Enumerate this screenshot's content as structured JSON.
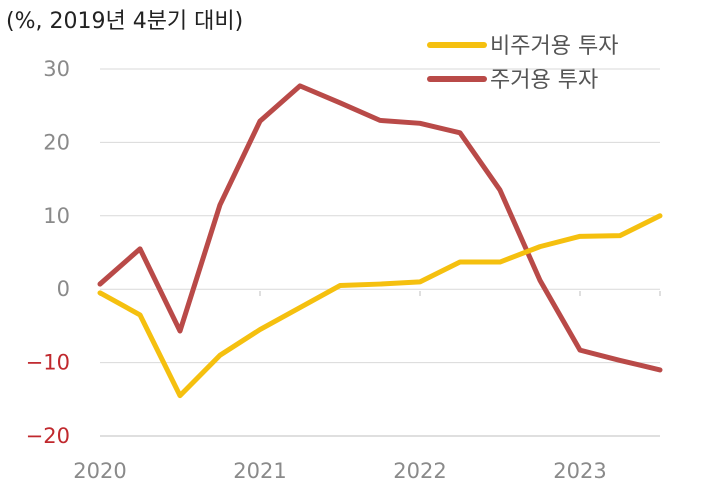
{
  "chart_data": {
    "type": "line",
    "unit_label": "(%, 2019년 4분기 대비)",
    "x": [
      0,
      1,
      2,
      3,
      4,
      5,
      6,
      7,
      8,
      9,
      10,
      11,
      12,
      13,
      14
    ],
    "x_tick_labels": [
      {
        "pos": 0,
        "label": "2020"
      },
      {
        "pos": 4,
        "label": "2021"
      },
      {
        "pos": 8,
        "label": "2022"
      },
      {
        "pos": 12,
        "label": "2023"
      }
    ],
    "xlim": [
      0,
      14
    ],
    "ylim": [
      -20,
      30
    ],
    "y_ticks": [
      30,
      20,
      10,
      0,
      -10,
      -20
    ],
    "grid": true,
    "legend_position": "top-right",
    "series": [
      {
        "name": "비주거용 투자",
        "color": "#f5c00f",
        "values": [
          -0.5,
          -3.5,
          -14.5,
          -9,
          -5.5,
          -2.5,
          0.5,
          0.7,
          1.0,
          3.7,
          3.7,
          5.8,
          7.2,
          7.3,
          10.0
        ]
      },
      {
        "name": "주거용 투자",
        "color": "#b94a48",
        "values": [
          0.7,
          5.5,
          -5.7,
          11.5,
          22.9,
          27.7,
          25.4,
          23.0,
          22.6,
          21.3,
          13.5,
          1.2,
          -8.3,
          -9.7,
          -11.0
        ]
      }
    ]
  }
}
